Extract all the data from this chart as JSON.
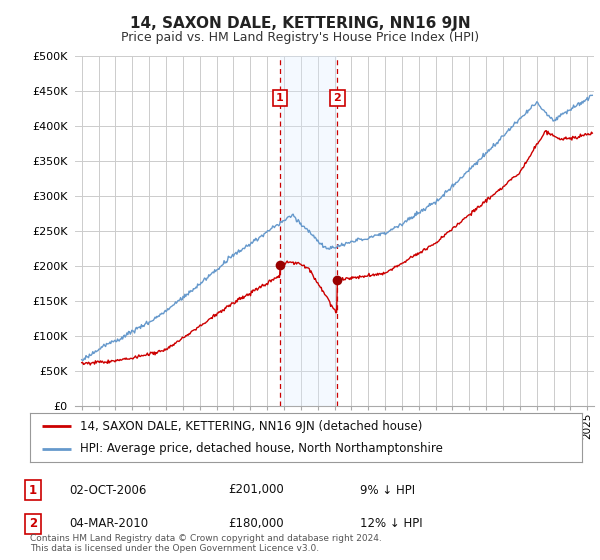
{
  "title": "14, SAXON DALE, KETTERING, NN16 9JN",
  "subtitle": "Price paid vs. HM Land Registry's House Price Index (HPI)",
  "legend_line1": "14, SAXON DALE, KETTERING, NN16 9JN (detached house)",
  "legend_line2": "HPI: Average price, detached house, North Northamptonshire",
  "footer": "Contains HM Land Registry data © Crown copyright and database right 2024.\nThis data is licensed under the Open Government Licence v3.0.",
  "transaction1_date": "02-OCT-2006",
  "transaction1_price": "£201,000",
  "transaction1_hpi": "9% ↓ HPI",
  "transaction2_date": "04-MAR-2010",
  "transaction2_price": "£180,000",
  "transaction2_hpi": "12% ↓ HPI",
  "ylim": [
    0,
    500000
  ],
  "yticks": [
    0,
    50000,
    100000,
    150000,
    200000,
    250000,
    300000,
    350000,
    400000,
    450000,
    500000
  ],
  "ytick_labels": [
    "£0",
    "£50K",
    "£100K",
    "£150K",
    "£200K",
    "£250K",
    "£300K",
    "£350K",
    "£400K",
    "£450K",
    "£500K"
  ],
  "background_color": "#ffffff",
  "red_line_color": "#cc0000",
  "blue_line_color": "#6699cc",
  "shaded_region_color": "#ddeeff",
  "vline_color": "#cc0000",
  "grid_color": "#cccccc",
  "transaction1_x": 2006.75,
  "transaction1_y": 201000,
  "transaction2_x": 2010.17,
  "transaction2_y": 180000,
  "shade_x1": 2006.75,
  "shade_x2": 2010.17,
  "xlim_left": 1994.6,
  "xlim_right": 2025.4
}
